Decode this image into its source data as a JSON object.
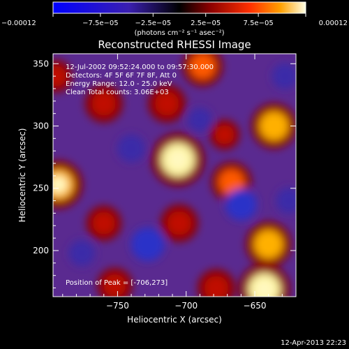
{
  "chart_data": {
    "type": "heatmap",
    "title": "Reconstructed RHESSI Image",
    "xlabel": "Heliocentric X (arcsec)",
    "ylabel": "Heliocentric Y (arcsec)",
    "xlim": [
      -797,
      -620
    ],
    "ylim": [
      163,
      358
    ],
    "xticks": [
      -750,
      -700,
      -650
    ],
    "xtick_labels": [
      "−750",
      "−700",
      "−650"
    ],
    "yticks": [
      200,
      250,
      300,
      350
    ],
    "ytick_labels": [
      "200",
      "250",
      "300",
      "350"
    ],
    "colorbar": {
      "min": -0.00012,
      "max": 0.00012,
      "ticks": [
        -0.00012,
        -7.5e-05,
        -2.5e-05,
        2.5e-05,
        7.5e-05,
        0.00012
      ],
      "tick_labels": [
        "−0.00012",
        "−7.5e−05",
        "−2.5e−05",
        "2.5e−05",
        "7.5e−05",
        "0.00012"
      ],
      "units_label": "(photons cm⁻² s⁻¹ asec⁻²)"
    },
    "annotations": [
      "12-Jul-2002 09:52:24.000 to 09:57:30.000",
      "Detectors: 4F 5F 6F 7F 8F, Att 0",
      "Energy Range: 12.0 - 25.0 keV",
      "Clean    Total counts: 3.06E+03"
    ],
    "peak_label": "Position of Peak = [-706,273]",
    "peak": [
      -706,
      273
    ],
    "sources": [
      {
        "x": -706,
        "y": 273,
        "value": 0.00012
      },
      {
        "x": -793,
        "y": 253,
        "value": 0.0001
      },
      {
        "x": -760,
        "y": 318,
        "value": 6e-05
      },
      {
        "x": -714,
        "y": 318,
        "value": 6e-05
      },
      {
        "x": -688,
        "y": 348,
        "value": 7e-05
      },
      {
        "x": -636,
        "y": 300,
        "value": 9e-05
      },
      {
        "x": -672,
        "y": 293,
        "value": 3e-05
      },
      {
        "x": -667,
        "y": 255,
        "value": 7e-05
      },
      {
        "x": -760,
        "y": 222,
        "value": 5e-05
      },
      {
        "x": -705,
        "y": 222,
        "value": 6e-05
      },
      {
        "x": -640,
        "y": 205,
        "value": 9e-05
      },
      {
        "x": -678,
        "y": 170,
        "value": 6e-05
      },
      {
        "x": -643,
        "y": 169,
        "value": 0.00011
      },
      {
        "x": -752,
        "y": 172,
        "value": 5e-05
      },
      {
        "x": -795,
        "y": 340,
        "value": 4e-05
      },
      {
        "x": -728,
        "y": 205,
        "value": -9e-05
      },
      {
        "x": -660,
        "y": 237,
        "value": -8e-05
      },
      {
        "x": -740,
        "y": 282,
        "value": -6e-05
      },
      {
        "x": -776,
        "y": 198,
        "value": -5e-05
      },
      {
        "x": -690,
        "y": 305,
        "value": -4e-05
      },
      {
        "x": -628,
        "y": 340,
        "value": -5e-05
      },
      {
        "x": -625,
        "y": 240,
        "value": -5e-05
      }
    ]
  },
  "footer": {
    "timestamp": "12-Apr-2013 22:23"
  }
}
